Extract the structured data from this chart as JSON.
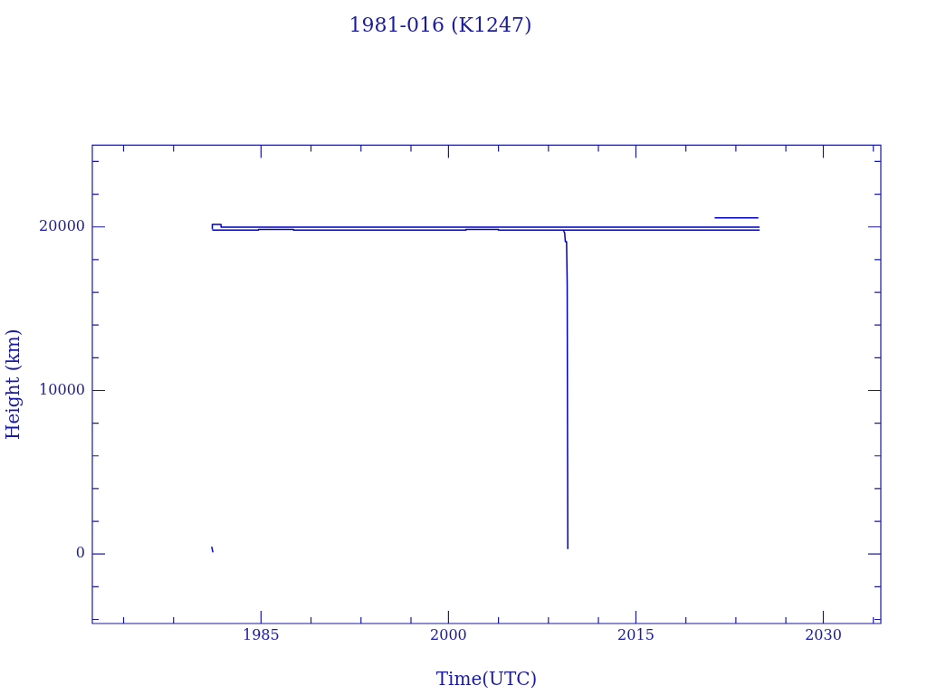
{
  "chart_data": {
    "type": "line",
    "title": "1981-016 (K1247)",
    "xlabel": "Time(UTC)",
    "ylabel": "Height (km)",
    "xlim": [
      1971.5,
      2034.6
    ],
    "ylim": [
      -4250,
      25000
    ],
    "xticks": [
      {
        "value": 1974,
        "label": null
      },
      {
        "value": 1978,
        "label": null
      },
      1985,
      {
        "value": 1989,
        "label": null
      },
      {
        "value": 1993,
        "label": null
      },
      {
        "value": 1997,
        "label": null
      },
      2000,
      {
        "value": 2004,
        "label": null
      },
      {
        "value": 2008,
        "label": null
      },
      {
        "value": 2012,
        "label": null
      },
      2015,
      {
        "value": 2019,
        "label": null
      },
      {
        "value": 2023,
        "label": null
      },
      {
        "value": 2027,
        "label": null
      },
      2030,
      {
        "value": 2034,
        "label": null
      }
    ],
    "yticks": [
      {
        "value": -4000,
        "label": null
      },
      {
        "value": -2000,
        "label": null
      },
      0,
      {
        "value": 2000,
        "label": null
      },
      {
        "value": 4000,
        "label": null
      },
      {
        "value": 6000,
        "label": null
      },
      {
        "value": 8000,
        "label": null
      },
      10000,
      {
        "value": 12000,
        "label": null
      },
      {
        "value": 14000,
        "label": null
      },
      {
        "value": 16000,
        "label": null
      },
      {
        "value": 18000,
        "label": null
      },
      20000,
      {
        "value": 22000,
        "label": null
      },
      {
        "value": 24000,
        "label": null
      }
    ],
    "grid": false,
    "legend": false,
    "marker": "none",
    "line_style": "solid",
    "series": [
      {
        "color": "#0000c0",
        "x": [
          1981.1,
          1981.1,
          1981.8,
          1981.8,
          2024.9
        ],
        "values": [
          19850,
          20150,
          20150,
          19990,
          19990
        ]
      },
      {
        "color": "#0000c0",
        "x": [
          1981.1,
          1984.8,
          1984.8,
          1987.6,
          1987.6,
          2001.4,
          2001.4,
          2004.0,
          2004.0,
          2024.9
        ],
        "values": [
          19800,
          19800,
          19850,
          19850,
          19800,
          19800,
          19850,
          19850,
          19800,
          19800
        ]
      },
      {
        "color": "#0000c0",
        "x": [
          2009.2,
          2009.3,
          2009.35,
          2009.45,
          2009.5,
          2009.55
        ],
        "values": [
          19750,
          19650,
          19100,
          19100,
          16500,
          300
        ]
      },
      {
        "color": "#0000c0",
        "x": [
          2021.3,
          2024.8
        ],
        "values": [
          20550,
          20550
        ]
      },
      {
        "color": "#0000c0",
        "x": [
          1981.05,
          1981.15
        ],
        "values": [
          450,
          100
        ]
      }
    ]
  }
}
